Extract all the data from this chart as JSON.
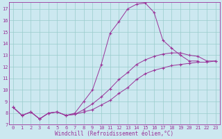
{
  "xlabel": "Windchill (Refroidissement éolien,°C)",
  "bg_color": "#cce8f0",
  "line_color": "#993399",
  "grid_color": "#99cccc",
  "xlim": [
    -0.5,
    23.5
  ],
  "ylim": [
    7,
    17.6
  ],
  "xticks": [
    0,
    1,
    2,
    3,
    4,
    5,
    6,
    7,
    8,
    9,
    10,
    11,
    12,
    13,
    14,
    15,
    16,
    17,
    18,
    19,
    20,
    21,
    22,
    23
  ],
  "yticks": [
    7,
    8,
    9,
    10,
    11,
    12,
    13,
    14,
    15,
    16,
    17
  ],
  "line1_x": [
    0,
    1,
    2,
    3,
    4,
    5,
    6,
    7,
    8,
    9,
    10,
    11,
    12,
    13,
    14,
    15,
    16,
    17,
    18,
    19,
    20,
    21
  ],
  "line1_y": [
    8.5,
    7.8,
    8.1,
    7.5,
    8.0,
    8.1,
    7.8,
    8.0,
    9.0,
    10.0,
    12.2,
    14.9,
    15.9,
    17.0,
    17.4,
    17.5,
    16.7,
    14.3,
    13.6,
    13.0,
    12.5,
    12.5
  ],
  "line2_x": [
    0,
    1,
    2,
    3,
    4,
    5,
    6,
    7,
    8,
    9,
    10,
    11,
    12,
    13,
    14,
    15,
    16,
    17,
    18,
    19,
    20,
    21,
    22,
    23
  ],
  "line2_y": [
    8.5,
    7.8,
    8.1,
    7.5,
    8.0,
    8.1,
    7.8,
    7.9,
    8.1,
    8.3,
    8.7,
    9.1,
    9.7,
    10.2,
    10.9,
    11.4,
    11.7,
    11.9,
    12.1,
    12.2,
    12.3,
    12.4,
    12.4,
    12.5
  ],
  "line3_x": [
    0,
    1,
    2,
    3,
    4,
    5,
    6,
    7,
    8,
    9,
    10,
    11,
    12,
    13,
    14,
    15,
    16,
    17,
    18,
    19,
    20,
    21,
    22,
    23
  ],
  "line3_y": [
    8.5,
    7.8,
    8.1,
    7.5,
    8.0,
    8.1,
    7.8,
    7.9,
    8.3,
    8.8,
    9.4,
    10.1,
    10.9,
    11.5,
    12.2,
    12.6,
    12.9,
    13.1,
    13.2,
    13.2,
    13.0,
    12.9,
    12.5,
    12.5
  ],
  "tick_fontsize": 5,
  "xlabel_fontsize": 5.5
}
